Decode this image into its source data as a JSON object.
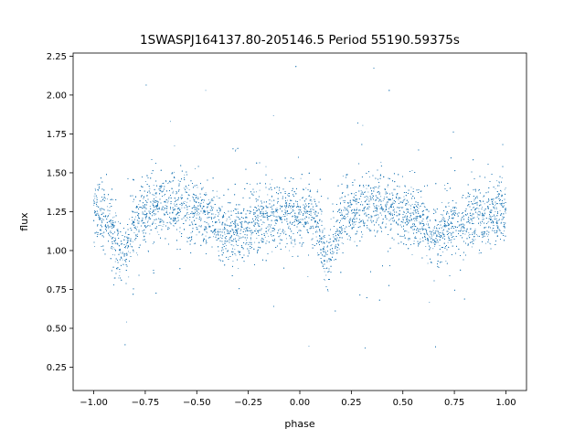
{
  "chart_data": {
    "type": "scatter",
    "title": "1SWASPJ164137.80-205146.5 Period 55190.59375s",
    "xlabel": "phase",
    "ylabel": "flux",
    "xlim": [
      -1.1,
      1.1
    ],
    "ylim": [
      0.1,
      2.27
    ],
    "x_ticks": [
      -1.0,
      -0.75,
      -0.5,
      -0.25,
      0.0,
      0.25,
      0.5,
      0.75,
      1.0
    ],
    "x_tick_labels": [
      "−1.00",
      "−0.75",
      "−0.50",
      "−0.25",
      "0.00",
      "0.25",
      "0.50",
      "0.75",
      "1.00"
    ],
    "y_ticks": [
      0.25,
      0.5,
      0.75,
      1.0,
      1.25,
      1.5,
      1.75,
      2.0,
      2.25
    ],
    "y_tick_labels": [
      "0.25",
      "0.50",
      "0.75",
      "1.00",
      "1.25",
      "1.50",
      "1.75",
      "2.00",
      "2.25"
    ],
    "grid": false,
    "marker_color": "#1f77b4",
    "phase_range": [
      -1.0,
      1.0
    ],
    "light_curve_profile": [
      {
        "phase": 0.0,
        "flux": 1.25
      },
      {
        "phase": 0.05,
        "flux": 1.22
      },
      {
        "phase": 0.1,
        "flux": 1.1
      },
      {
        "phase": 0.13,
        "flux": 0.92
      },
      {
        "phase": 0.16,
        "flux": 1.0
      },
      {
        "phase": 0.2,
        "flux": 1.22
      },
      {
        "phase": 0.3,
        "flux": 1.28
      },
      {
        "phase": 0.4,
        "flux": 1.3
      },
      {
        "phase": 0.5,
        "flux": 1.25
      },
      {
        "phase": 0.6,
        "flux": 1.18
      },
      {
        "phase": 0.65,
        "flux": 1.08
      },
      {
        "phase": 0.7,
        "flux": 1.12
      },
      {
        "phase": 0.8,
        "flux": 1.2
      },
      {
        "phase": 0.9,
        "flux": 1.22
      },
      {
        "phase": 1.0,
        "flux": 1.25
      }
    ],
    "scatter_sigma": 0.1,
    "outlier_fraction": 0.05,
    "approx_point_count": 14000
  }
}
